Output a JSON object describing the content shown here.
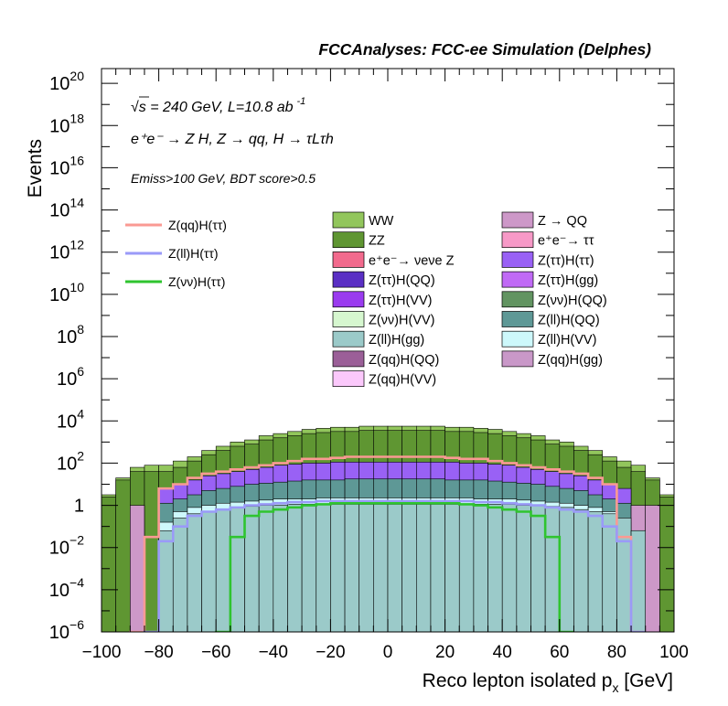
{
  "header": {
    "title": "FCCAnalyses: FCC-ee Simulation (Delphes)"
  },
  "annotations": {
    "energy_label": "√s = 240 GeV, L=10.8 ab",
    "energy_exp": "-1",
    "process_label": "e⁺e⁻ → Z H, Z → qq, H → τLτh",
    "selection_label": "Emiss>100 GeV, BDT score>0.5"
  },
  "colors": {
    "WW": "#92c65c",
    "ZZ": "#5f9632",
    "Zqq_Hgg_bkg": "#c998c8",
    "nuenue": "#f26a8d",
    "Ztt_HQQ": "#5a2fc4",
    "Ztt_HVV": "#9a3bef",
    "Znn_HVV": "#d6f7cf",
    "Zll_Hgg": "#9bcac9",
    "Zqq_HQQ": "#9b5f98",
    "Zqq_HVV": "#fbc8fb",
    "ZQQ": "#cd98c8",
    "tautau": "#f799c7",
    "Ztt_Htt": "#9961f5",
    "Ztt_Hgg": "#c06af5",
    "Znn_HQQ": "#629461",
    "Zll_HQQ": "#5e9896",
    "Zll_HVV": "#cdf8fb",
    "sig_qq": "#fa9a93",
    "sig_ll": "#9a9af8",
    "sig_nn": "#2fc42f"
  },
  "chart_data": {
    "type": "histogram-stack",
    "title": "FCCAnalyses: FCC-ee Simulation (Delphes)",
    "xlabel": "Reco lepton isolated p",
    "xlabel_sub": "x",
    "xlabel_unit": " [GeV]",
    "ylabel": "Events",
    "xlim": [
      -100,
      100
    ],
    "ylim_log10": [
      -6,
      20.7
    ],
    "yscale": "log",
    "x_ticks": [
      -100,
      -80,
      -60,
      -40,
      -20,
      0,
      20,
      40,
      60,
      80,
      100
    ],
    "x_tick_labels": [
      "−100",
      "−80",
      "−60",
      "−40",
      "−20",
      "0",
      "20",
      "40",
      "60",
      "80",
      "100"
    ],
    "y_ticks": [
      {
        "exp": -6,
        "base": "10",
        "sup": "−6"
      },
      {
        "exp": -4,
        "base": "10",
        "sup": "−4"
      },
      {
        "exp": -2,
        "base": "10",
        "sup": "−2"
      },
      {
        "exp": 0,
        "base": "1",
        "sup": ""
      },
      {
        "exp": 2,
        "base": "10",
        "sup": "2"
      },
      {
        "exp": 4,
        "base": "10",
        "sup": "4"
      },
      {
        "exp": 6,
        "base": "10",
        "sup": "6"
      },
      {
        "exp": 8,
        "base": "10",
        "sup": "8"
      },
      {
        "exp": 10,
        "base": "10",
        "sup": "10"
      },
      {
        "exp": 12,
        "base": "10",
        "sup": "12"
      },
      {
        "exp": 14,
        "base": "10",
        "sup": "14"
      },
      {
        "exp": 16,
        "base": "10",
        "sup": "16"
      },
      {
        "exp": 18,
        "base": "10",
        "sup": "18"
      },
      {
        "exp": 20,
        "base": "10",
        "sup": "20"
      }
    ],
    "bin_edges": [
      -100,
      -95,
      -90,
      -85,
      -80,
      -75,
      -70,
      -65,
      -60,
      -55,
      -50,
      -45,
      -40,
      -35,
      -30,
      -25,
      -20,
      -15,
      -10,
      -5,
      0,
      5,
      10,
      15,
      20,
      25,
      30,
      35,
      40,
      45,
      50,
      55,
      60,
      65,
      70,
      75,
      80,
      85,
      90,
      95,
      100
    ],
    "stack_totals_log10": [
      0.5,
      1.3,
      1.8,
      1.9,
      1.9,
      2.1,
      2.3,
      2.6,
      2.8,
      3.0,
      3.1,
      3.3,
      3.4,
      3.5,
      3.6,
      3.65,
      3.7,
      3.7,
      3.75,
      3.75,
      3.75,
      3.75,
      3.75,
      3.75,
      3.7,
      3.7,
      3.65,
      3.6,
      3.5,
      3.4,
      3.3,
      3.1,
      3.0,
      2.8,
      2.6,
      2.3,
      2.1,
      1.9,
      1.3,
      0.5
    ],
    "stack_layers": [
      {
        "key": "Zll_Hgg",
        "top_log10": [
          null,
          null,
          null,
          null,
          -1.2,
          -0.6,
          -0.4,
          -0.3,
          -0.2,
          -0.1,
          -0.05,
          0,
          0,
          0.05,
          0.05,
          0.05,
          0.05,
          0.05,
          0.05,
          0.05,
          0.05,
          0.05,
          0.05,
          0.05,
          0.05,
          0.05,
          0.05,
          0.05,
          0.05,
          0,
          0,
          -0.05,
          -0.1,
          -0.2,
          -0.3,
          -0.4,
          -0.6,
          -1.2,
          null,
          null
        ]
      },
      {
        "key": "Zll_HVV",
        "top_log10": [
          null,
          null,
          null,
          null,
          -0.8,
          -0.3,
          -0.1,
          0,
          0.1,
          0.15,
          0.2,
          0.25,
          0.3,
          0.3,
          0.3,
          0.35,
          0.35,
          0.35,
          0.35,
          0.35,
          0.35,
          0.35,
          0.35,
          0.35,
          0.35,
          0.35,
          0.3,
          0.3,
          0.3,
          0.25,
          0.2,
          0.15,
          0.1,
          0,
          -0.1,
          -0.3,
          -0.8,
          null,
          null,
          null
        ]
      },
      {
        "key": "ZQQ",
        "top_log10": [
          null,
          -6,
          0,
          -6,
          -6,
          -6,
          -6,
          -6,
          -6,
          -6,
          -6,
          -6,
          -6,
          -6,
          -6,
          -6,
          -6,
          -6,
          -6,
          -6,
          -6,
          -2.4,
          -6,
          -6,
          -6,
          -6,
          -6,
          -6,
          -6,
          -6,
          -6,
          -6,
          -6,
          -6,
          -6,
          -6,
          -6,
          0,
          0,
          null
        ]
      },
      {
        "key": "Zll_HQQ",
        "top_log10": [
          null,
          null,
          null,
          null,
          0.1,
          0.3,
          0.5,
          0.7,
          0.8,
          0.9,
          1.0,
          1.05,
          1.1,
          1.15,
          1.2,
          1.2,
          1.2,
          1.25,
          1.25,
          1.25,
          1.25,
          1.25,
          1.25,
          1.25,
          1.2,
          1.2,
          1.2,
          1.15,
          1.1,
          1.05,
          1.0,
          0.9,
          0.8,
          0.7,
          0.5,
          0.3,
          0.1,
          null,
          null,
          null
        ]
      },
      {
        "key": "Ztt_Htt",
        "top_log10": [
          null,
          null,
          null,
          null,
          0.8,
          1.0,
          1.2,
          1.4,
          1.5,
          1.6,
          1.7,
          1.8,
          1.9,
          1.95,
          2.0,
          2.0,
          2.05,
          2.05,
          2.05,
          2.05,
          2.05,
          2.05,
          2.05,
          2.05,
          2.05,
          2.0,
          2.0,
          1.95,
          1.9,
          1.8,
          1.7,
          1.6,
          1.5,
          1.4,
          1.2,
          1.0,
          0.8,
          null,
          null,
          null
        ]
      },
      {
        "key": "ZZ",
        "top_log10": [
          0.4,
          1.2,
          1.6,
          1.6,
          1.6,
          1.8,
          2.1,
          2.4,
          2.6,
          2.8,
          2.9,
          3.1,
          3.2,
          3.3,
          3.4,
          3.45,
          3.5,
          3.5,
          3.55,
          3.55,
          3.55,
          3.55,
          3.55,
          3.55,
          3.5,
          3.5,
          3.45,
          3.4,
          3.3,
          3.2,
          3.1,
          2.9,
          2.8,
          2.6,
          2.4,
          2.1,
          1.8,
          1.6,
          1.2,
          0.4
        ]
      },
      {
        "key": "WW",
        "top_log10": [
          0.5,
          1.3,
          1.8,
          1.9,
          1.9,
          2.1,
          2.3,
          2.6,
          2.8,
          3.0,
          3.1,
          3.3,
          3.4,
          3.5,
          3.6,
          3.65,
          3.7,
          3.7,
          3.75,
          3.75,
          3.75,
          3.75,
          3.75,
          3.75,
          3.7,
          3.7,
          3.65,
          3.6,
          3.5,
          3.4,
          3.3,
          3.1,
          3.0,
          2.8,
          2.6,
          2.3,
          2.1,
          1.9,
          1.3,
          0.5
        ]
      }
    ],
    "signals": [
      {
        "key": "sig_qq",
        "name": "Z(qq)H(ττ)",
        "values_log10": [
          null,
          null,
          -6,
          -1.5,
          0.8,
          1.0,
          1.3,
          1.5,
          1.6,
          1.7,
          1.8,
          1.9,
          2.0,
          2.1,
          2.2,
          2.2,
          2.25,
          2.3,
          2.3,
          2.3,
          2.3,
          2.3,
          2.3,
          2.3,
          2.25,
          2.2,
          2.2,
          2.1,
          2.0,
          1.9,
          1.8,
          1.7,
          1.6,
          1.5,
          1.3,
          1.0,
          -1.5,
          -6,
          null,
          null
        ]
      },
      {
        "key": "sig_ll",
        "name": "Z(ll)H(ττ)",
        "values_log10": [
          null,
          null,
          null,
          -6,
          -1.7,
          -1.0,
          -0.5,
          -0.3,
          -0.2,
          -0.1,
          0,
          0.05,
          0.1,
          0.15,
          0.15,
          0.2,
          0.2,
          0.2,
          0.2,
          0.2,
          0.2,
          0.2,
          0.2,
          0.2,
          0.2,
          0.2,
          0.15,
          0.15,
          0.1,
          0.05,
          0,
          -0.1,
          -0.2,
          -0.3,
          -0.5,
          -1.0,
          -1.7,
          -6,
          null,
          null
        ]
      },
      {
        "key": "sig_nn",
        "name": "Z(νν)H(ττ)",
        "values_log10": [
          null,
          null,
          null,
          null,
          null,
          null,
          null,
          null,
          -6,
          -1.5,
          -0.5,
          -0.3,
          -0.2,
          -0.1,
          0,
          0.05,
          0.1,
          0.1,
          0.1,
          0.1,
          0.1,
          0.1,
          0.1,
          0.1,
          0.1,
          0.05,
          0,
          -0.1,
          -0.2,
          -0.3,
          -0.5,
          -1.5,
          -6,
          null,
          null,
          null,
          null,
          null,
          null,
          null
        ]
      }
    ],
    "legend_signals": [
      {
        "key": "sig_qq",
        "label": "Z(qq)H(ττ)"
      },
      {
        "key": "sig_ll",
        "label": "Z(ll)H(ττ)"
      },
      {
        "key": "sig_nn",
        "label": "Z(νν)H(ττ)"
      }
    ],
    "legend_bkg_col1": [
      {
        "key": "WW",
        "label": "WW"
      },
      {
        "key": "ZZ",
        "label": "ZZ"
      },
      {
        "key": "nuenue",
        "label": "e⁺e⁻→ νeνe Z"
      },
      {
        "key": "Ztt_HQQ",
        "label": "Z(ττ)H(QQ)"
      },
      {
        "key": "Ztt_HVV",
        "label": "Z(ττ)H(VV)"
      },
      {
        "key": "Znn_HVV",
        "label": "Z(νν)H(VV)"
      },
      {
        "key": "Zll_Hgg",
        "label": "Z(ll)H(gg)"
      },
      {
        "key": "Zqq_HQQ",
        "label": "Z(qq)H(QQ)"
      },
      {
        "key": "Zqq_HVV",
        "label": "Z(qq)H(VV)"
      }
    ],
    "legend_bkg_col2": [
      {
        "key": "ZQQ",
        "label": "Z → QQ"
      },
      {
        "key": "tautau",
        "label": "e⁺e⁻→ ττ"
      },
      {
        "key": "Ztt_Htt",
        "label": "Z(ττ)H(ττ)"
      },
      {
        "key": "Ztt_Hgg",
        "label": "Z(ττ)H(gg)"
      },
      {
        "key": "Znn_HQQ",
        "label": "Z(νν)H(QQ)"
      },
      {
        "key": "Zll_HQQ",
        "label": "Z(ll)H(QQ)"
      },
      {
        "key": "Zll_HVV",
        "label": "Z(ll)H(VV)"
      },
      {
        "key": "Zqq_Hgg_bkg",
        "label": "Z(qq)H(gg)"
      }
    ]
  }
}
